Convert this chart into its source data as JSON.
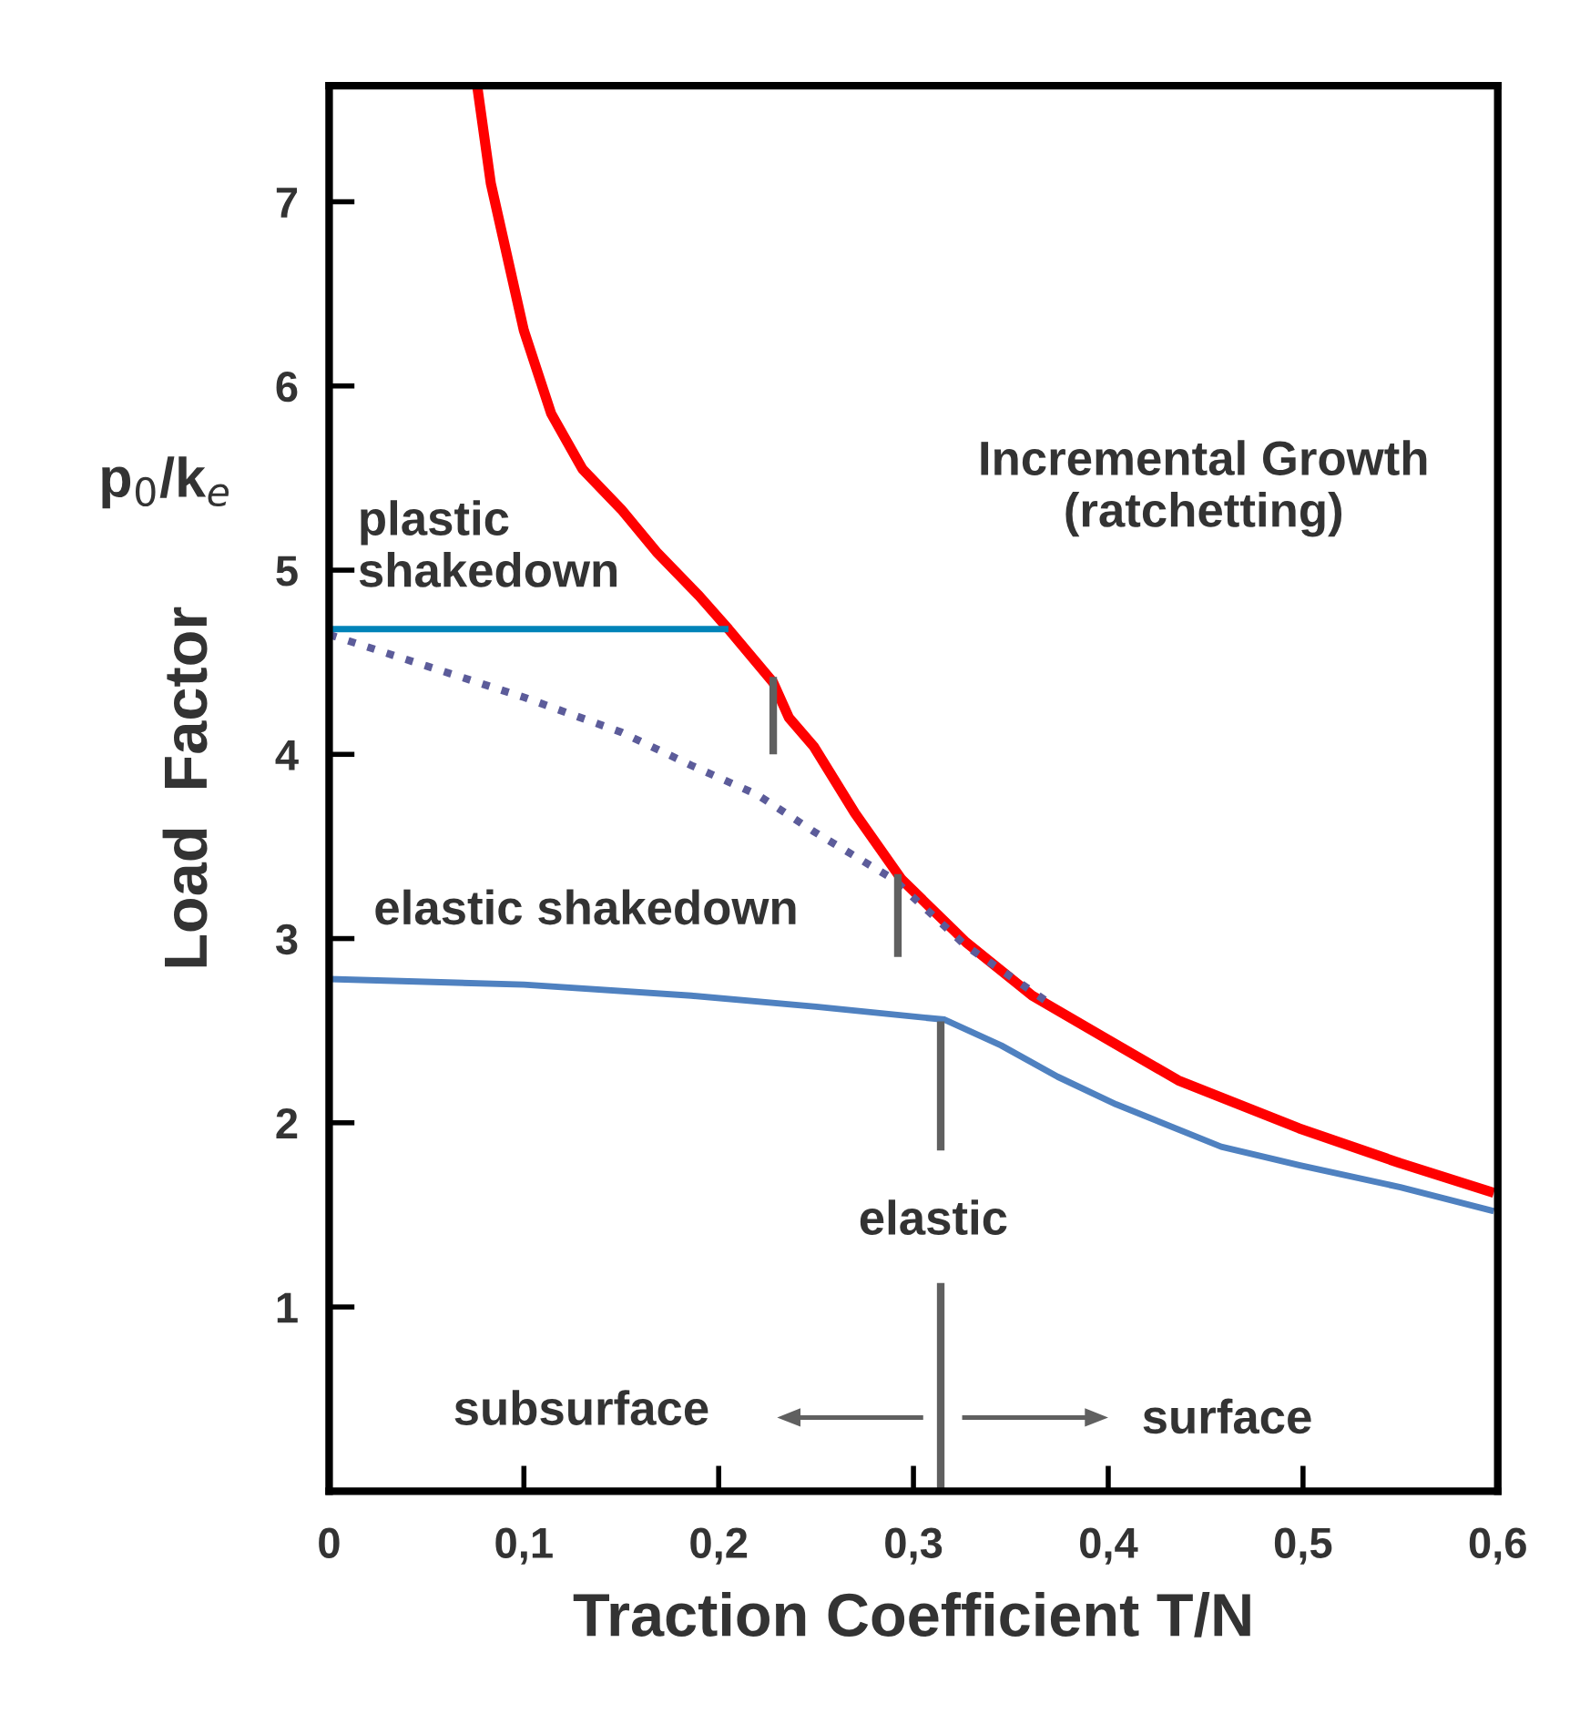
{
  "chart_data": {
    "type": "line",
    "xlabel": "Traction Coefficient T/N",
    "ylabel": "Load  Factor",
    "xlim": [
      0,
      0.6
    ],
    "ylim": [
      0,
      7.63
    ],
    "xticks": [
      0,
      {
        "value": 0.1,
        "label": "0,1"
      },
      {
        "value": 0.2,
        "label": "0,2"
      },
      {
        "value": 0.3,
        "label": "0,3"
      },
      {
        "value": 0.4,
        "label": "0,4"
      },
      {
        "value": 0.5,
        "label": "0,5"
      },
      {
        "value": 0.6,
        "label": "0,6"
      }
    ],
    "yticks": [
      1,
      2,
      3,
      4,
      5,
      6,
      7
    ],
    "grid": false,
    "legend": false,
    "series": [
      {
        "color": "#ff0000",
        "x": [
          0.076,
          0.083,
          0.1,
          0.114,
          0.13,
          0.15,
          0.168,
          0.19,
          0.205,
          0.228,
          0.236,
          0.249,
          0.27,
          0.294,
          0.327,
          0.361,
          0.4,
          0.436,
          0.498,
          0.55,
          0.598
        ],
        "values": [
          7.63,
          7.1,
          6.3,
          5.85,
          5.55,
          5.33,
          5.1,
          4.86,
          4.68,
          4.39,
          4.2,
          4.04,
          3.68,
          3.32,
          2.98,
          2.69,
          2.45,
          2.23,
          1.97,
          1.78,
          1.62
        ]
      },
      {
        "color": "#0083b8",
        "x": [
          0,
          0.205
        ],
        "values": [
          4.68,
          4.68
        ]
      },
      {
        "color": "#5c5c9a",
        "line_style": "dotted",
        "x": [
          0,
          0.05,
          0.1,
          0.15,
          0.186,
          0.22,
          0.249,
          0.29,
          0.327,
          0.371
        ],
        "values": [
          4.65,
          4.48,
          4.31,
          4.12,
          3.94,
          3.78,
          3.58,
          3.32,
          2.96,
          2.64
        ]
      },
      {
        "color": "#4f81c0",
        "x": [
          0,
          0.1,
          0.186,
          0.25,
          0.316,
          0.345,
          0.374,
          0.404,
          0.458,
          0.498,
          0.55,
          0.598
        ],
        "values": [
          2.78,
          2.75,
          2.69,
          2.63,
          2.56,
          2.42,
          2.25,
          2.1,
          1.87,
          1.77,
          1.65,
          1.52
        ]
      },
      {
        "color": "#606060",
        "x": [
          0.228,
          0.228
        ],
        "values": [
          4.0,
          4.42
        ]
      },
      {
        "color": "#606060",
        "x": [
          0.292,
          0.292
        ],
        "values": [
          2.9,
          3.35
        ]
      },
      {
        "color": "#606060",
        "x": [
          0.314,
          0.314
        ],
        "values": [
          1.85,
          2.55
        ]
      },
      {
        "color": "#606060",
        "x": [
          0.314,
          0.314
        ],
        "values": [
          0,
          1.13
        ]
      }
    ],
    "annotations": [
      "Incremental Growth\n(ratchetting)",
      "plastic\nshakedown",
      "elastic shakedown",
      "elastic",
      "subsurface",
      "surface",
      "p$_{0}$/k$_{e}$"
    ]
  }
}
